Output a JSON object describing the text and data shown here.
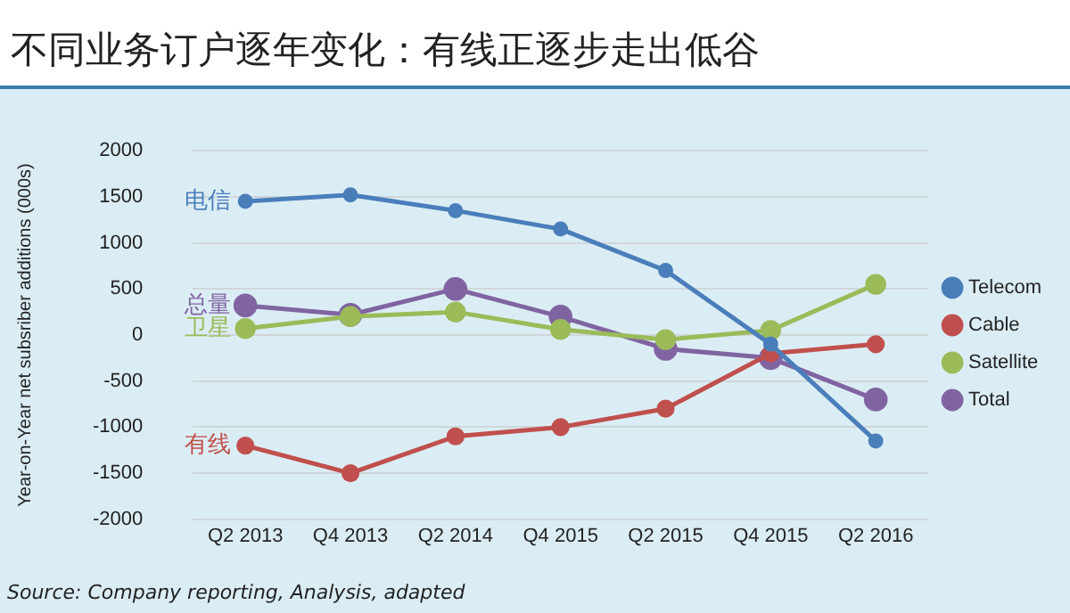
{
  "chart_data": {
    "type": "line",
    "title": "不同业务订户逐年变化：有线正逐步走出低谷",
    "ylabel": "Year-on-Year net subsriber additions (000s)",
    "categories": [
      "Q2 2013",
      "Q4 2013",
      "Q2 2014",
      "Q4 2015",
      "Q2 2015",
      "Q4 2015",
      "Q2 2016"
    ],
    "series": [
      {
        "name": "Telecom",
        "color": "#4a7ebb",
        "values": [
          1450,
          1520,
          1350,
          1150,
          700,
          -100,
          -1150
        ]
      },
      {
        "name": "Cable",
        "color": "#c0504d",
        "values": [
          -1200,
          -1500,
          -1100,
          -1000,
          -800,
          -200,
          -100
        ]
      },
      {
        "name": "Satellite",
        "color": "#9bbb59",
        "values": [
          70,
          200,
          250,
          60,
          -50,
          50,
          550
        ]
      },
      {
        "name": "Total",
        "color": "#8064a2",
        "values": [
          320,
          220,
          500,
          200,
          -150,
          -250,
          -700
        ]
      }
    ],
    "ylim": [
      -2000,
      2000
    ],
    "yticks": [
      -2000,
      -1500,
      -1000,
      -500,
      0,
      500,
      1000,
      1500,
      2000
    ],
    "grid": "y",
    "legend": "right",
    "marker": "circle",
    "line_style": "solid",
    "annotations": [
      {
        "text": "电信",
        "x": "Q2 2013",
        "y": 1450
      },
      {
        "text": "总量",
        "x": "Q2 2013",
        "y": 320
      },
      {
        "text": "卫星",
        "x": "Q2 2013",
        "y": 70
      },
      {
        "text": "有线",
        "x": "Q2 2013",
        "y": -1200
      },
      "Source: Company reporting, Analysis, adapted"
    ]
  }
}
